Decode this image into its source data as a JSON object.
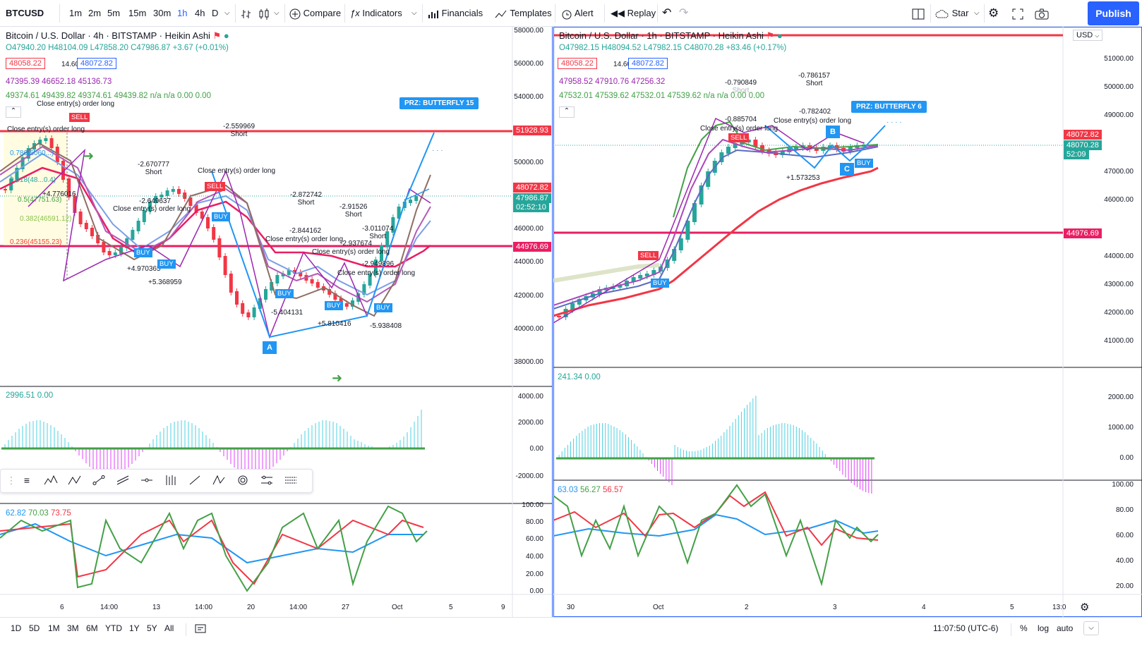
{
  "toolbar": {
    "symbol": "BTCUSD",
    "intervals": [
      "1m",
      "2m",
      "5m",
      "15m",
      "30m",
      "1h",
      "4h",
      "D"
    ],
    "active_interval": "1h",
    "compare": "Compare",
    "indicators": "Indicators",
    "financials": "Financials",
    "templates": "Templates",
    "alert": "Alert",
    "replay": "Replay",
    "star": "Star",
    "publish": "Publish"
  },
  "left_chart": {
    "title": "Bitcoin / U.S. Dollar · 4h · BITSTAMP · Heikin Ashi",
    "ohlc": "O47940.20 H48104.09 L47858.20 C47986.87 +3.67 (+0.01%)",
    "bid": "48058.22",
    "spread": "14.60",
    "ask": "48072.82",
    "ma_line1": "47395.39 46652.18 45136.73",
    "ma_line2": "49374.61 49439.82 49374.61 49439.82 n/a n/a 0.00 0.00",
    "price_axis": [
      "58000.00",
      "56000.00",
      "54000.00",
      "50000.00",
      "46000.00",
      "44000.00",
      "42000.00",
      "40000.00",
      "38000.00"
    ],
    "tags": {
      "red_line": "51928.93",
      "ask": "48072.82",
      "last": "47986.87",
      "timer": "02:52:10",
      "pink_line": "44976.69"
    },
    "prz": "PRZ: BUTTERFLY 15",
    "fibs": [
      "0.786(5060...)",
      "0.618(48...0.4)",
      "0.5(47751.63)",
      "0.382(46591.12)",
      "0.236(45155.23)"
    ],
    "annotations": [
      {
        "t": "-2.559969",
        "s": "Short"
      },
      {
        "t": "-2.670777",
        "s": "Short"
      },
      {
        "t": "-2.649637",
        "s": ""
      },
      {
        "t": "-2.872742",
        "s": "Short"
      },
      {
        "t": "-2.91526",
        "s": "Short"
      },
      {
        "t": "-3.011074",
        "s": "Short"
      },
      {
        "t": "-2.844162",
        "s": ""
      },
      {
        "t": "-2.937674",
        "s": ""
      },
      {
        "t": "-2.949896",
        "s": ""
      }
    ],
    "closes": [
      "Close entry(s) order long",
      "Close entry(s) order long",
      "Close entry(s) order long",
      "Close entry(s) order long",
      "Close entry(s) order long",
      "Close entry(s) order long",
      "Close entry(s) order long"
    ],
    "longs": [
      "+4.776016",
      "+4.970365",
      "+5.368959",
      "-5.404131",
      "+5.810416",
      "-5.938408"
    ],
    "osc_legend": "2996.51 0.00",
    "osc_axis": [
      "4000.00",
      "2000.00",
      "0.00",
      "-2000.00"
    ],
    "rsi_legend": [
      "62.82",
      "70.03",
      "73.75"
    ],
    "rsi_axis": [
      "100.00",
      "80.00",
      "60.00",
      "40.00",
      "20.00",
      "0.00"
    ],
    "xaxis": [
      "6",
      "14:00",
      "13",
      "14:00",
      "20",
      "14:00",
      "27",
      "Oct",
      "5",
      "9"
    ]
  },
  "right_chart": {
    "title": "Bitcoin / U.S. Dollar · 1h · BITSTAMP · Heikin Ashi",
    "ohlc": "O47982.15 H48094.52 L47982.15 C48070.28 +83.46 (+0.17%)",
    "bid": "48058.22",
    "spread": "14.60",
    "ask": "48072.82",
    "ma_line1": "47958.52 47910.76 47256.32",
    "ma_line2": "47532.01 47539.62 47532.01 47539.62 n/a n/a 0.00 0.00",
    "currency": "USD",
    "price_axis": [
      "51000.00",
      "50000.00",
      "49000.00",
      "47000.00",
      "46000.00",
      "44000.00",
      "43000.00",
      "42000.00",
      "41000.00"
    ],
    "tags": {
      "ask": "48072.82",
      "last": "48070.28",
      "timer": "52:09",
      "pink_line": "44976.69"
    },
    "prz": "PRZ: BUTTERFLY 6",
    "annotations": [
      {
        "t": "-0.790849",
        "s": "Short"
      },
      {
        "t": "-0.786157",
        "s": "Short"
      },
      {
        "t": "-0.885704",
        "s": ""
      },
      {
        "t": "-0.782402",
        "s": ""
      }
    ],
    "closes": [
      "Close entry(s) order long",
      "Close entry(s) order long"
    ],
    "longs": [
      "+1.573253"
    ],
    "osc_legend": "241.34 0.00",
    "osc_axis": [
      "2000.00",
      "1000.00",
      "0.00"
    ],
    "rsi_legend": [
      "63.03",
      "56.27",
      "56.57"
    ],
    "rsi_axis": [
      "100.00",
      "80.00",
      "60.00",
      "40.00",
      "20.00"
    ],
    "xaxis": [
      "30",
      "Oct",
      "2",
      "3",
      "4",
      "5",
      "13:0"
    ]
  },
  "bottom": {
    "ranges": [
      "1D",
      "5D",
      "1M",
      "3M",
      "6M",
      "YTD",
      "1Y",
      "5Y",
      "All"
    ],
    "time": "11:07:50 (UTC-6)",
    "pct": "%",
    "log": "log",
    "auto": "auto"
  }
}
